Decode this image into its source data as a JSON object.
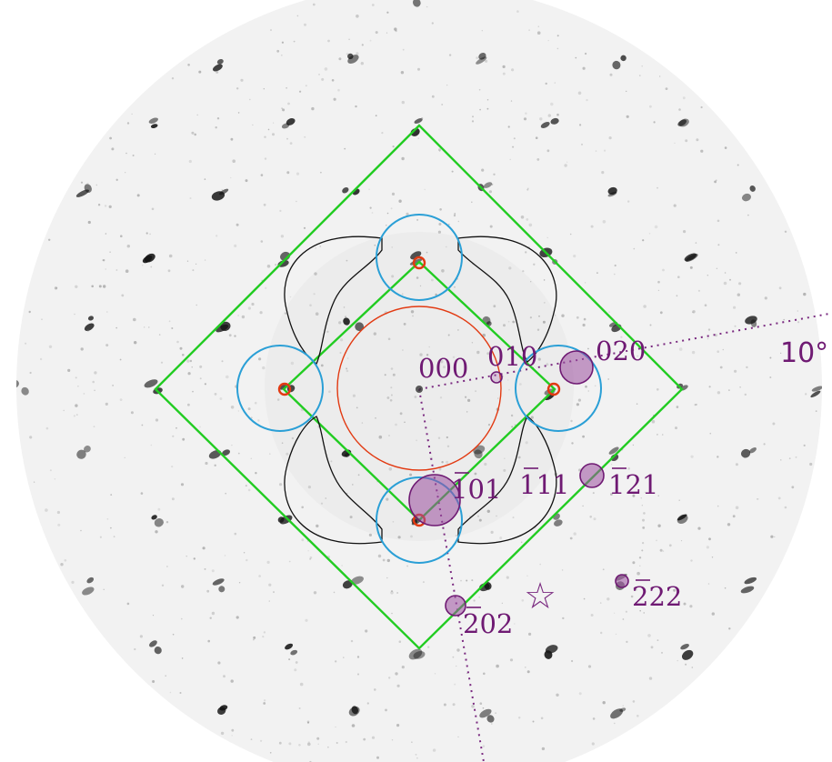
{
  "diagram": {
    "labels": {
      "origin": "000",
      "r010": "010",
      "r020": "020",
      "r101": "101",
      "r111": "111",
      "r121": "121",
      "r202": "202",
      "r222": "222",
      "angle": "10°"
    },
    "star_symbol": "☆",
    "colors": {
      "zone_diamond": "#22cc22",
      "blue_circles": "#2a9fd6",
      "red_circle": "#e23a12",
      "contour_lines": "#111111",
      "marker_fill": "#9a4f9f",
      "marker_stroke": "#6f1a73",
      "label_text": "#6f1a73",
      "spots": "#141414",
      "disc_background": "#f2f2f2"
    }
  }
}
